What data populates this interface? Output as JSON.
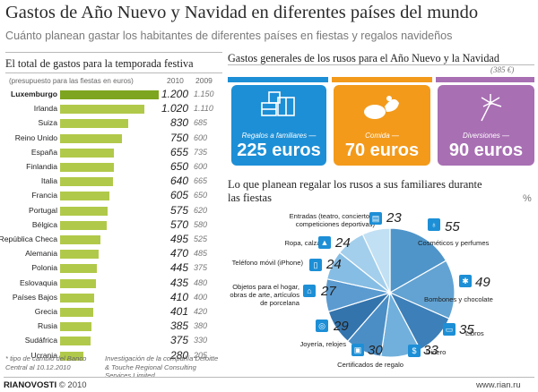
{
  "title": "Gastos de Año Nuevo y Navidad en diferentes países del mundo",
  "subtitle": "Cuánto planean gastar los habitantes de diferentes países en fiestas y regalos navideños",
  "left": {
    "heading": "El total de gastos para la temporada festiva",
    "unit_note": "(presupuesto para las fiestas en euros)",
    "year_a": "2010",
    "year_b": "2009",
    "footnote1": "* tipo de cambio del Banco Central al 10.12.2010",
    "footnote2": "Investigación de la compañía Deloitte & Touche Regional Consulting Services Limited"
  },
  "right": {
    "heading": "Gastos generales de los rusos para el Año Nuevo y la Navidad",
    "total": "(385 €)",
    "cards": [
      {
        "label": "Regalos a familiares —",
        "amount": "225 euros",
        "color": "#1d8fd6"
      },
      {
        "label": "Comida —",
        "amount": "70 euros",
        "color": "#f39a1b"
      },
      {
        "label": "Diversiones —",
        "amount": "90 euros",
        "color": "#a86fb3"
      }
    ],
    "gift_title": "Lo que planean regalar los rusos a sus familiares durante las fiestas",
    "pct_sign": "%"
  },
  "chart_data": [
    {
      "type": "bar",
      "orientation": "horizontal",
      "title": "El total de gastos para la temporada festiva",
      "ylabel": "(presupuesto para las fiestas en euros)",
      "categories": [
        "Luxemburgo",
        "Irlanda",
        "Suiza",
        "Reino Unido",
        "España",
        "Finlandia",
        "Italia",
        "Francia",
        "Portugal",
        "Bélgica",
        "República Checa",
        "Alemania",
        "Polonia",
        "Eslovaquia",
        "Países Bajos",
        "Grecia",
        "Rusia",
        "Sudáfrica",
        "Ucrania"
      ],
      "series": [
        {
          "name": "2010",
          "values": [
            1200,
            1020,
            830,
            750,
            655,
            650,
            640,
            605,
            575,
            570,
            495,
            470,
            445,
            435,
            410,
            401,
            385,
            375,
            280
          ],
          "labels": [
            "1.200",
            "1.020",
            "830",
            "750",
            "655",
            "650",
            "640",
            "605",
            "575",
            "570",
            "495",
            "470",
            "445",
            "435",
            "410",
            "401",
            "385",
            "375",
            "280"
          ]
        },
        {
          "name": "2009",
          "values": [
            1150,
            1110,
            685,
            600,
            735,
            600,
            665,
            650,
            620,
            580,
            525,
            485,
            375,
            480,
            400,
            420,
            380,
            330,
            205
          ],
          "labels": [
            "1.150",
            "1.110",
            "685",
            "600",
            "735",
            "600",
            "665",
            "650",
            "620",
            "580",
            "525",
            "485",
            "375",
            "480",
            "400",
            "420",
            "380",
            "330",
            "205"
          ]
        }
      ]
    },
    {
      "type": "bar",
      "title": "Gastos generales de los rusos para el Año Nuevo y la Navidad",
      "categories": [
        "Regalos a familiares",
        "Comida",
        "Diversiones"
      ],
      "values": [
        225,
        70,
        90
      ],
      "total": 385,
      "unit": "euros"
    },
    {
      "type": "pie",
      "title": "Lo que planean regalar los rusos a sus familiares durante las fiestas",
      "unit": "%",
      "slices": [
        {
          "label": "Cosméticos y perfumes",
          "value": 55,
          "icon": "perfume-icon",
          "glyph": "♁"
        },
        {
          "label": "Bombones y chocolate",
          "value": 49,
          "icon": "candy-icon",
          "glyph": "✱"
        },
        {
          "label": "Libros",
          "value": 35,
          "icon": "book-icon",
          "glyph": "▭"
        },
        {
          "label": "Dinero",
          "value": 33,
          "icon": "money-icon",
          "glyph": "$"
        },
        {
          "label": "Certificados de regalo",
          "value": 30,
          "icon": "gift-card-icon",
          "glyph": "▣"
        },
        {
          "label": "Joyería, relojes",
          "value": 29,
          "icon": "jewelry-icon",
          "glyph": "◎"
        },
        {
          "label": "Objetos para el hogar, obras de arte, artículos de porcelana",
          "value": 27,
          "icon": "home-icon",
          "glyph": "⌂"
        },
        {
          "label": "Teléfono móvil (iPhone)",
          "value": 24,
          "icon": "phone-icon",
          "glyph": "▯"
        },
        {
          "label": "Ropa, calzado",
          "value": 24,
          "icon": "clothes-icon",
          "glyph": "▲"
        },
        {
          "label": "Entradas (teatro, conciertos, competiciones deportivas)",
          "value": 23,
          "icon": "ticket-icon",
          "glyph": "▤"
        }
      ],
      "colors": [
        "#4f95c9",
        "#62a3d3",
        "#3d7fb8",
        "#71b0dc",
        "#4b8ec6",
        "#3474ad",
        "#5b9bd0",
        "#86bde4",
        "#a3cfec",
        "#c2e0f3"
      ]
    }
  ],
  "footer": {
    "logo_a": "RIA",
    "logo_b": "NOVOSTI",
    "copyright": "© 2010",
    "site": "www.rian.ru"
  }
}
